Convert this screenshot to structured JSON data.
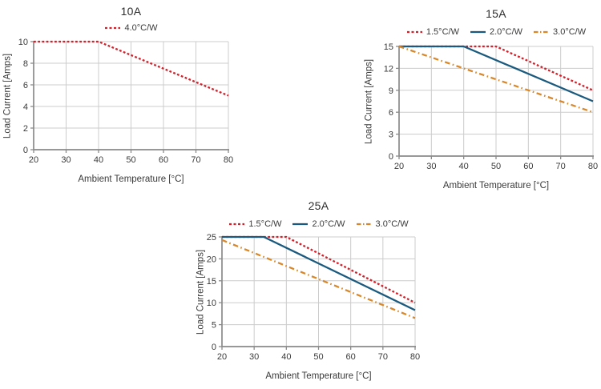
{
  "colors": {
    "red": "#d2202a",
    "blue": "#1a5a7e",
    "orange": "#d8882a",
    "grid": "#cccccc",
    "axis": "#8a8a8a",
    "text": "#3a3a3a"
  },
  "chart_data": [
    {
      "id": "10A",
      "type": "line",
      "title": "10A",
      "xlabel": "Ambient Temperature [°C]",
      "ylabel": "Load Current [Amps]",
      "xlim": [
        20,
        80
      ],
      "ylim": [
        0,
        10
      ],
      "xticks": [
        20,
        30,
        40,
        50,
        60,
        70,
        80
      ],
      "yticks": [
        0,
        2,
        4,
        6,
        8,
        10
      ],
      "grid": true,
      "legend_position": "top",
      "series": [
        {
          "name": "4.0°C/W",
          "color": "red",
          "style": "dashed",
          "points": [
            [
              20,
              10
            ],
            [
              40,
              10
            ],
            [
              80,
              5
            ]
          ]
        }
      ]
    },
    {
      "id": "15A",
      "type": "line",
      "title": "15A",
      "xlabel": "Ambient Temperature [°C]",
      "ylabel": "Load Current [Amps]",
      "xlim": [
        20,
        80
      ],
      "ylim": [
        0,
        15
      ],
      "xticks": [
        20,
        30,
        40,
        50,
        60,
        70,
        80
      ],
      "yticks": [
        0,
        3,
        6,
        9,
        12,
        15
      ],
      "grid": true,
      "legend_position": "top",
      "series": [
        {
          "name": "1.5°C/W",
          "color": "red",
          "style": "dashed",
          "points": [
            [
              20,
              15
            ],
            [
              50,
              15
            ],
            [
              80,
              9
            ]
          ]
        },
        {
          "name": "2.0°C/W",
          "color": "blue",
          "style": "solid",
          "points": [
            [
              20,
              15
            ],
            [
              40,
              15
            ],
            [
              80,
              7.5
            ]
          ]
        },
        {
          "name": "3.0°C/W",
          "color": "orange",
          "style": "dashdot",
          "points": [
            [
              20,
              15
            ],
            [
              80,
              6
            ]
          ]
        }
      ]
    },
    {
      "id": "25A",
      "type": "line",
      "title": "25A",
      "xlabel": "Ambient Temperature [°C]",
      "ylabel": "Load Current [Amps]",
      "xlim": [
        20,
        80
      ],
      "ylim": [
        0,
        25
      ],
      "xticks": [
        20,
        30,
        40,
        50,
        60,
        70,
        80
      ],
      "yticks": [
        0,
        5,
        10,
        15,
        20,
        25
      ],
      "grid": true,
      "legend_position": "top",
      "series": [
        {
          "name": "1.5°C/W",
          "color": "red",
          "style": "dashed",
          "points": [
            [
              20,
              25
            ],
            [
              40,
              25
            ],
            [
              80,
              10
            ]
          ]
        },
        {
          "name": "2.0°C/W",
          "color": "blue",
          "style": "solid",
          "points": [
            [
              20,
              25
            ],
            [
              33,
              25
            ],
            [
              80,
              8.3
            ]
          ]
        },
        {
          "name": "3.0°C/W",
          "color": "orange",
          "style": "dashdot",
          "points": [
            [
              20,
              24.3
            ],
            [
              80,
              6.5
            ]
          ]
        }
      ]
    }
  ]
}
